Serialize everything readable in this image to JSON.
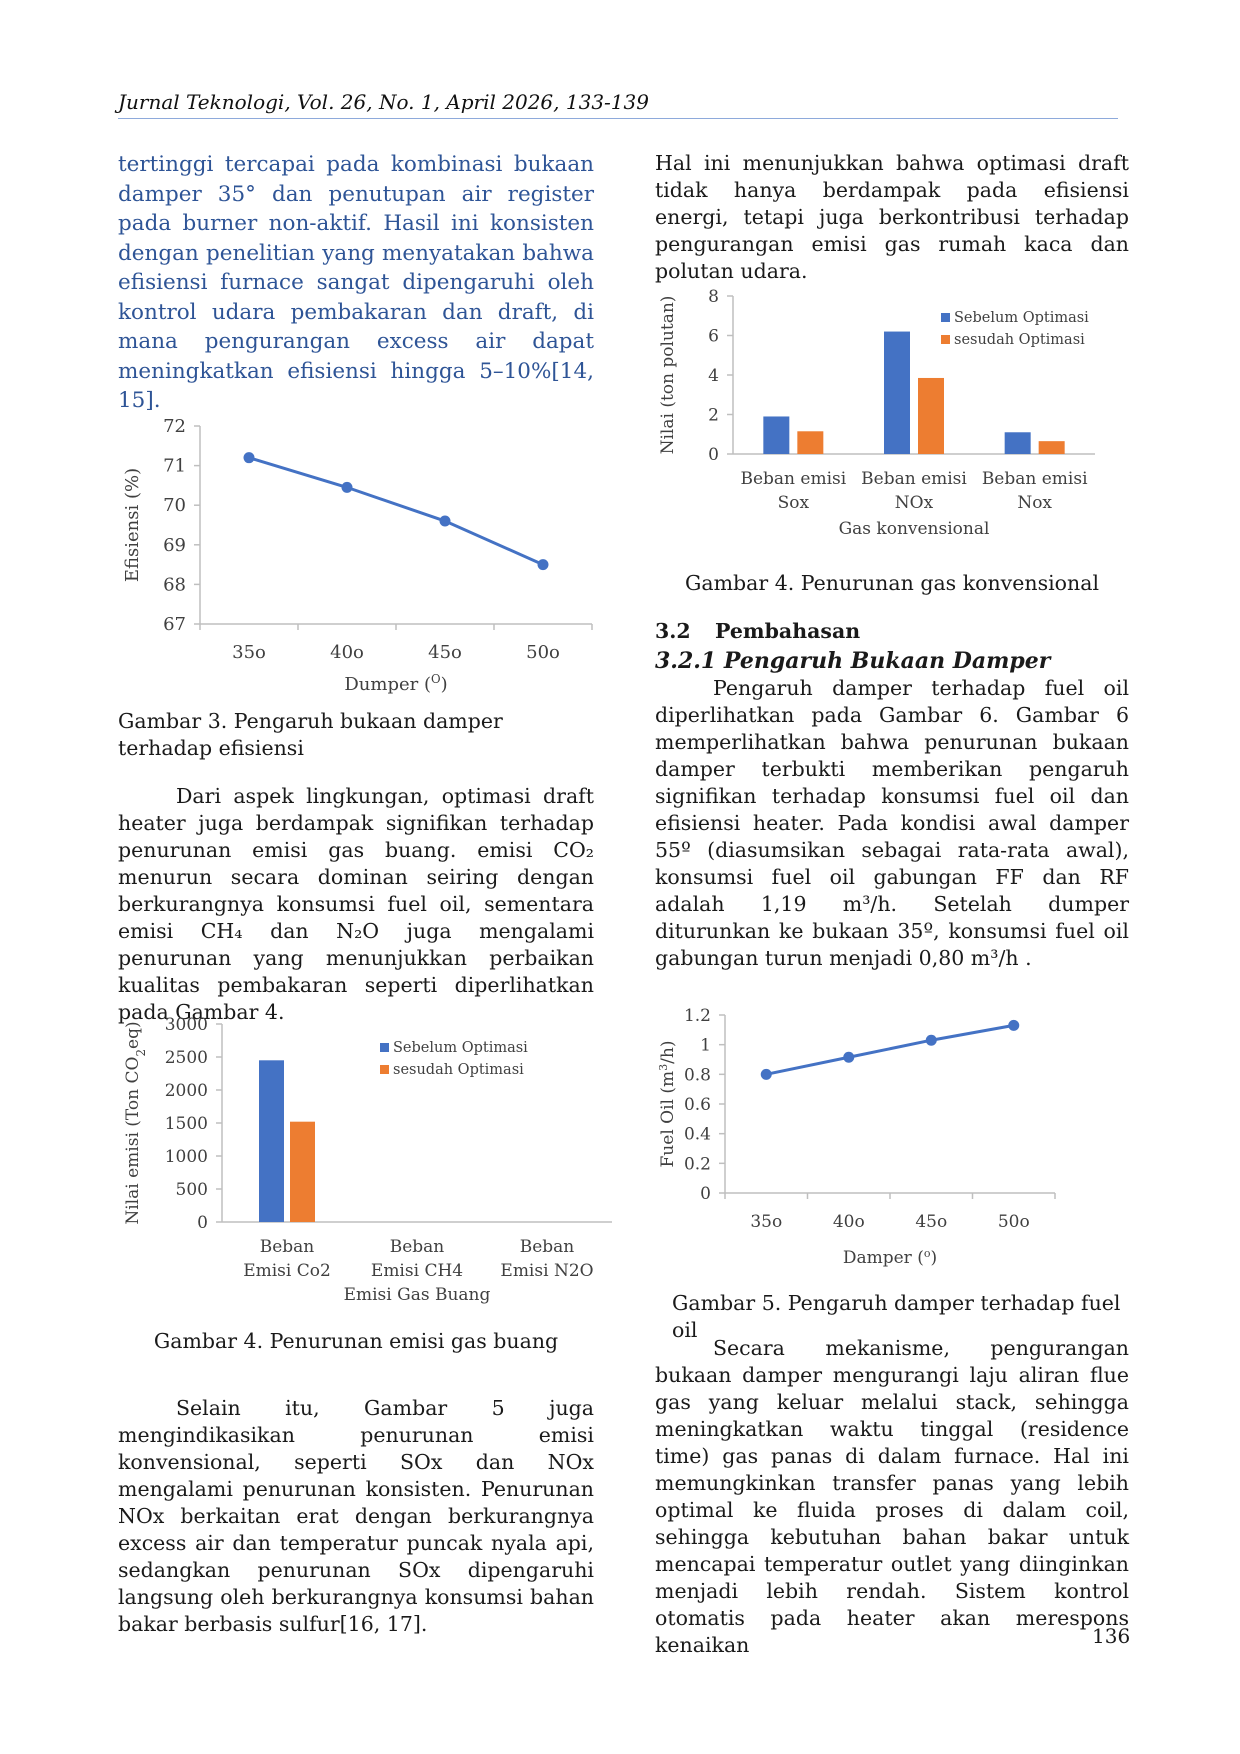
{
  "header": {
    "running_title": "Jurnal Teknologi, Vol. 26, No. 1, April 2026, 133-139"
  },
  "left": {
    "para1": "tertinggi tercapai pada kombinasi bukaan damper 35° dan penutupan air register pada burner non-aktif. Hasil ini konsisten dengan penelitian yang menyatakan bahwa efisiensi furnace sangat dipengaruhi oleh kontrol udara pembakaran dan draft, di mana pengurangan excess air dapat meningkatkan efisiensi hingga 5–10%[14, 15].",
    "fig3_caption": "Gambar 3. Pengaruh bukaan damper terhadap efisiensi",
    "para2": "Dari aspek lingkungan, optimasi draft heater juga berdampak signifikan terhadap penurunan emisi gas buang. emisi CO₂ menurun secara dominan seiring dengan berkurangnya konsumsi fuel oil, sementara emisi CH₄ dan N₂O juga mengalami penurunan yang menunjukkan perbaikan kualitas pembakaran seperti diperlihatkan pada Gambar 4.",
    "fig4a_caption": "Gambar 4. Penurunan emisi gas buang",
    "para3": "Selain itu, Gambar 5 juga mengindikasikan penurunan emisi konvensional, seperti SOx dan NOx mengalami penurunan konsisten. Penurunan NOx berkaitan erat dengan berkurangnya excess air dan temperatur puncak nyala api, sedangkan penurunan SOx dipengaruhi langsung oleh berkurangnya konsumsi bahan bakar berbasis sulfur[16, 17]."
  },
  "right": {
    "para1": "Hal ini menunjukkan bahwa optimasi draft tidak hanya berdampak pada efisiensi energi, tetapi juga berkontribusi terhadap pengurangan emisi gas rumah kaca dan polutan udara.",
    "fig4b_caption": "Gambar 4. Penurunan gas konvensional",
    "sec_num": "3.2",
    "sec_title": "Pembahasan",
    "subsec_num": "3.2.1",
    "subsec_title": "Pengaruh Bukaan Damper",
    "para2": "Pengaruh damper terhadap fuel oil diperlihatkan pada Gambar 6. Gambar 6 memperlihatkan bahwa penurunan bukaan damper terbukti memberikan pengaruh signifikan terhadap konsumsi fuel oil dan efisiensi heater. Pada kondisi awal damper 55º (diasumsikan sebagai rata-rata awal), konsumsi fuel oil gabungan FF dan RF adalah 1,19 m³/h. Setelah dumper diturunkan ke bukaan 35º, konsumsi fuel oil gabungan turun menjadi 0,80 m³/h .",
    "fig5_caption": "Gambar 5. Pengaruh damper terhadap fuel oil",
    "para3": "Secara mekanisme, pengurangan bukaan damper mengurangi laju aliran flue gas yang keluar melalui stack, sehingga meningkatkan waktu tinggal (residence time) gas panas di dalam furnace. Hal ini memungkinkan transfer panas yang lebih optimal ke fluida proses di dalam coil, sehingga kebutuhan bahan bakar untuk mencapai temperatur outlet yang diinginkan menjadi lebih rendah. Sistem kontrol otomatis pada heater akan merespons kenaikan"
  },
  "page_number": "136",
  "colors": {
    "blue": "#4472c4",
    "orange": "#ed7d31",
    "axis": "#bfbfbf",
    "header_rule": "#8eaadb"
  },
  "chart_data": [
    {
      "id": "fig3",
      "type": "line",
      "categories": [
        "35o",
        "40o",
        "45o",
        "50o"
      ],
      "series": [
        {
          "values": [
            71.2,
            70.45,
            69.6,
            68.5
          ]
        }
      ],
      "xlabel": "Dumper (O)",
      "ylabel": "Efisiensi (%)",
      "ylim": [
        67,
        72
      ],
      "yticks": [
        "67",
        "68",
        "69",
        "70",
        "71",
        "72"
      ],
      "grid": false
    },
    {
      "id": "fig4a",
      "type": "bar",
      "categories": [
        "Beban Emisi Co2",
        "Beban Emisi CH4",
        "Beban Emisi N2O"
      ],
      "series": [
        {
          "name": "Sebelum Optimasi",
          "values": [
            2450,
            0,
            0
          ]
        },
        {
          "name": "sesudah Optimasi",
          "values": [
            1520,
            0,
            0
          ]
        }
      ],
      "xlabel": "Emisi Gas Buang",
      "ylabel": "Nilai emisi (Ton CO2eq)",
      "ylim": [
        0,
        3000
      ],
      "yticks": [
        "0",
        "500",
        "1000",
        "1500",
        "2000",
        "2500",
        "3000"
      ],
      "legend": "top-right",
      "grid": false
    },
    {
      "id": "fig4b",
      "type": "bar",
      "categories": [
        "Beban emisi Sox",
        "Beban emisi NOx",
        "Beban emisi Nox"
      ],
      "series": [
        {
          "name": "Sebelum Optimasi",
          "values": [
            1.9,
            6.2,
            1.1
          ]
        },
        {
          "name": "sesudah Optimasi",
          "values": [
            1.15,
            3.85,
            0.65
          ]
        }
      ],
      "xlabel": "Gas konvensional",
      "ylabel": "Nilai (ton polutan)",
      "ylim": [
        0,
        8
      ],
      "yticks": [
        "0",
        "2",
        "4",
        "6",
        "8"
      ],
      "legend": "top-right",
      "grid": false
    },
    {
      "id": "fig5",
      "type": "line",
      "categories": [
        "35o",
        "40o",
        "45o",
        "50o"
      ],
      "series": [
        {
          "values": [
            0.8,
            0.915,
            1.03,
            1.13
          ]
        }
      ],
      "xlabel": "Damper (o)",
      "ylabel": "Fuel Oil (m3/h)",
      "ylim": [
        0,
        1.2
      ],
      "yticks": [
        "0",
        "0.2",
        "0.4",
        "0.6",
        "0.8",
        "1",
        "1.2"
      ],
      "grid": false
    }
  ]
}
